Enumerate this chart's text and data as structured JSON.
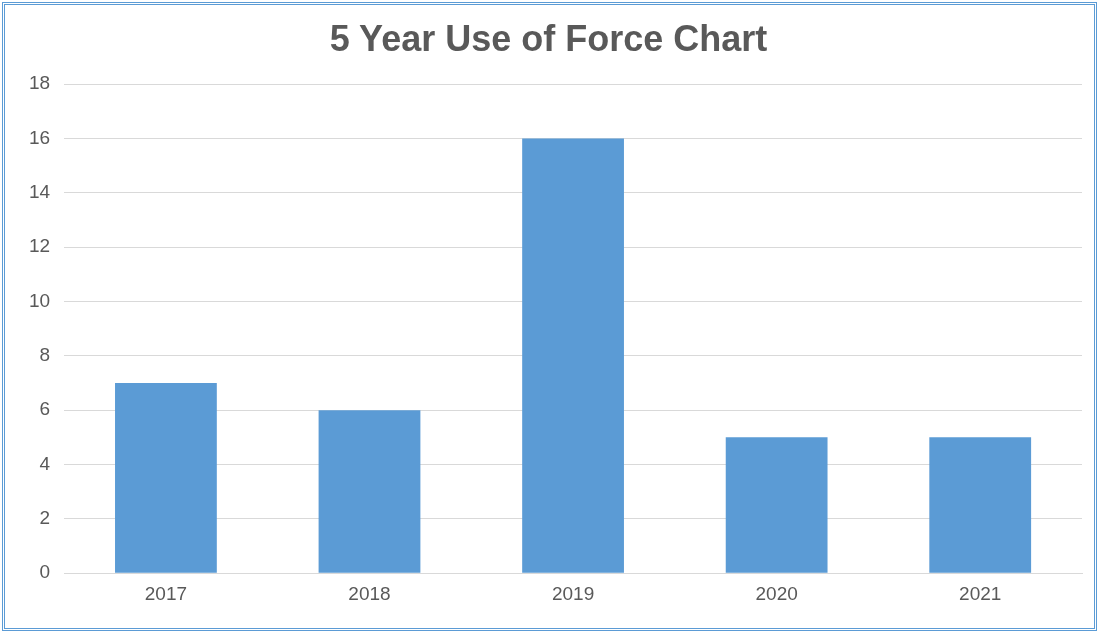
{
  "chart_data": {
    "type": "bar",
    "title": "5 Year Use of Force Chart",
    "categories": [
      "2017",
      "2018",
      "2019",
      "2020",
      "2021"
    ],
    "values": [
      7,
      6,
      16,
      5,
      5
    ],
    "color": "#5b9bd5",
    "ylim": [
      0,
      18
    ],
    "yticks": [
      0,
      2,
      4,
      6,
      8,
      10,
      12,
      14,
      16,
      18
    ],
    "grid": "y",
    "legend": false
  }
}
